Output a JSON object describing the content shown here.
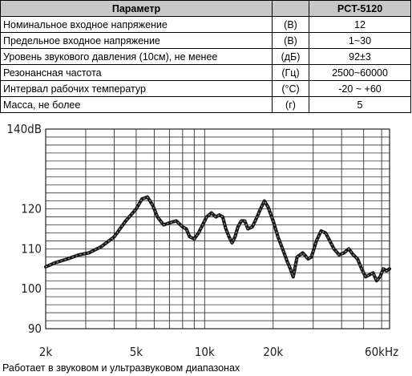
{
  "table": {
    "headers": [
      "Параметр",
      "",
      "PCT-5120"
    ],
    "rows": [
      {
        "param": "Номинальное входное напряжение",
        "unit": "(В)",
        "value": "12"
      },
      {
        "param": "Предельное входное напряжение",
        "unit": "(В)",
        "value": "1~30"
      },
      {
        "param": "Уровень звукового давления (10см), не менее",
        "unit": "(дБ)",
        "value": "92±3"
      },
      {
        "param": "Резонансная частота",
        "unit": "(Гц)",
        "value": "2500~60000"
      },
      {
        "param": "Интервал рабочих температур",
        "unit": "(°C)",
        "value": "-20 ~ +60"
      },
      {
        "param": "Масса, не более",
        "unit": "(г)",
        "value": "5"
      }
    ]
  },
  "chart_data": {
    "type": "line",
    "y_unit": "dB",
    "ylim": [
      90,
      140
    ],
    "y_ticks": [
      90,
      100,
      110,
      120,
      140
    ],
    "y_tick_labels": [
      "90",
      "100",
      "110",
      "120",
      "140dB"
    ],
    "xlim": [
      2000,
      65000
    ],
    "x_scale": "log",
    "x_ticks": [
      2000,
      5000,
      10000,
      20000,
      60000
    ],
    "x_tick_labels": [
      "2k",
      "5k",
      "10k",
      "20k",
      "60kHz"
    ],
    "grid": true,
    "series": [
      {
        "x": [
          2000,
          2200,
          2500,
          2800,
          3100,
          3500,
          4000,
          4500,
          5000,
          5300,
          5600,
          5900,
          6200,
          6600,
          7000,
          7500,
          8000,
          8300,
          8600,
          9000,
          9400,
          9800,
          10200,
          10700,
          11200,
          11600,
          12000,
          12400,
          12800,
          13200,
          13600,
          14000,
          14500,
          15000,
          15500,
          16200,
          17000,
          17600,
          18300,
          19000,
          20000,
          21000,
          22000,
          23000,
          23800,
          24500,
          25500,
          27000,
          28500,
          29500,
          31000,
          32500,
          34000,
          35500,
          37000,
          39000,
          41000,
          43000,
          45000,
          47000,
          49000,
          51000,
          53000,
          55000,
          57000,
          59000,
          61000,
          63000,
          65000
        ],
        "y": [
          105.5,
          106.5,
          107.5,
          108.5,
          109.0,
          110.5,
          113.0,
          117.0,
          120.0,
          122.5,
          123.0,
          121.0,
          118.0,
          116.0,
          116.5,
          117.0,
          115.5,
          115.0,
          113.0,
          112.5,
          114.0,
          116.0,
          118.0,
          119.0,
          118.0,
          118.5,
          118.0,
          115.0,
          113.0,
          111.5,
          113.0,
          115.5,
          117.0,
          117.0,
          115.0,
          115.5,
          118.0,
          120.0,
          122.0,
          120.5,
          117.0,
          113.0,
          110.0,
          107.0,
          105.0,
          103.0,
          108.0,
          109.0,
          107.5,
          108.0,
          112.0,
          114.5,
          114.0,
          112.0,
          110.0,
          108.5,
          109.0,
          110.0,
          108.5,
          107.5,
          105.0,
          103.0,
          103.5,
          104.0,
          102.0,
          103.0,
          105.0,
          104.5,
          105.0
        ]
      }
    ]
  },
  "caption": "Работает в звуковом и ультразвуковом диапазонах"
}
